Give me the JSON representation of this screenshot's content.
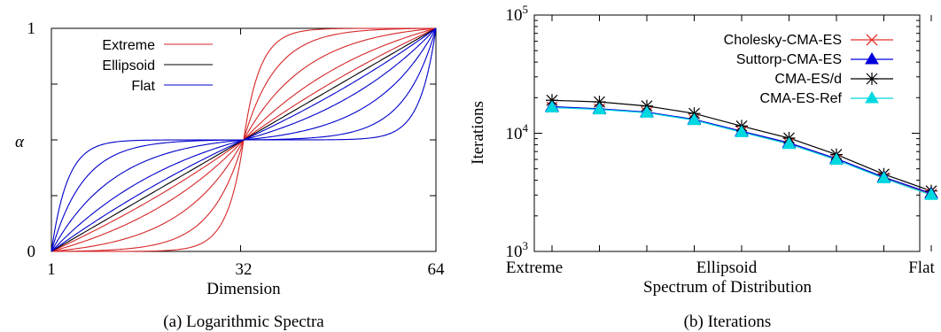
{
  "chart_data": [
    {
      "type": "line",
      "caption": "(a) Logarithmic Spectra",
      "xlabel": "Dimension",
      "ylabel": "α",
      "xlim": [
        1,
        64
      ],
      "ylim": [
        0,
        1
      ],
      "x_ticks": [
        "1",
        "32",
        "64"
      ],
      "y_ticks": [
        "0",
        "1"
      ],
      "grid": false,
      "legend_position": "top-left",
      "legend": [
        {
          "name": "Extreme",
          "color": "#d62728"
        },
        {
          "name": "Ellipsoid",
          "color": "#000000"
        },
        {
          "name": "Flat",
          "color": "#0000cc"
        }
      ],
      "series": [
        {
          "name": "Extreme",
          "color": "#d62728",
          "curvature": 4.0
        },
        {
          "color": "#d62728",
          "curvature": 2.0
        },
        {
          "color": "#d62728",
          "curvature": 1.0
        },
        {
          "color": "#d62728",
          "curvature": 0.45
        },
        {
          "color": "#d62728",
          "curvature": 0.15
        },
        {
          "name": "Ellipsoid",
          "color": "#000000",
          "curvature": 0.0
        },
        {
          "color": "#0000cc",
          "curvature": -0.15
        },
        {
          "color": "#0000cc",
          "curvature": -0.45
        },
        {
          "color": "#0000cc",
          "curvature": -1.0
        },
        {
          "color": "#0000cc",
          "curvature": -2.0
        },
        {
          "name": "Flat",
          "color": "#0000cc",
          "curvature": -4.0
        }
      ]
    },
    {
      "type": "line",
      "caption": "(b) Iterations",
      "xlabel": "Spectrum of Distribution",
      "ylabel": "Iterations",
      "y_scale": "log",
      "ylim": [
        1000,
        100000
      ],
      "y_ticks": [
        {
          "base": "10",
          "exp": "3",
          "value": 1000
        },
        {
          "base": "10",
          "exp": "4",
          "value": 10000
        },
        {
          "base": "10",
          "exp": "5",
          "value": 100000
        }
      ],
      "x_tick_labels": [
        {
          "label": "Extreme",
          "index": 0
        },
        {
          "label": "Ellipsoid",
          "index": 5
        },
        {
          "label": "Flat",
          "index": 10
        }
      ],
      "x_count": 11,
      "grid": false,
      "legend_position": "top-right",
      "series": [
        {
          "name": "Cholesky-CMA-ES",
          "color": "#e8312f",
          "marker": "x",
          "values": [
            16600,
            16000,
            15000,
            13000,
            10300,
            8200,
            6000,
            4200,
            3050,
            null,
            null
          ]
        },
        {
          "name": "Suttorp-CMA-ES",
          "color": "#0000dd",
          "marker": "triangle",
          "values": [
            16800,
            16100,
            15100,
            13100,
            10400,
            8300,
            6100,
            4250,
            3100,
            null,
            null
          ]
        },
        {
          "name": "CMA-ES/d",
          "color": "#000000",
          "marker": "star",
          "values": [
            19000,
            18400,
            17000,
            14700,
            11500,
            9100,
            6600,
            4500,
            3250,
            null,
            null
          ]
        },
        {
          "name": "CMA-ES-Ref",
          "color": "#00d8e0",
          "marker": "triangle",
          "values": [
            16500,
            15900,
            14900,
            12900,
            10200,
            8100,
            5950,
            4150,
            3000,
            null,
            null
          ]
        }
      ]
    }
  ]
}
